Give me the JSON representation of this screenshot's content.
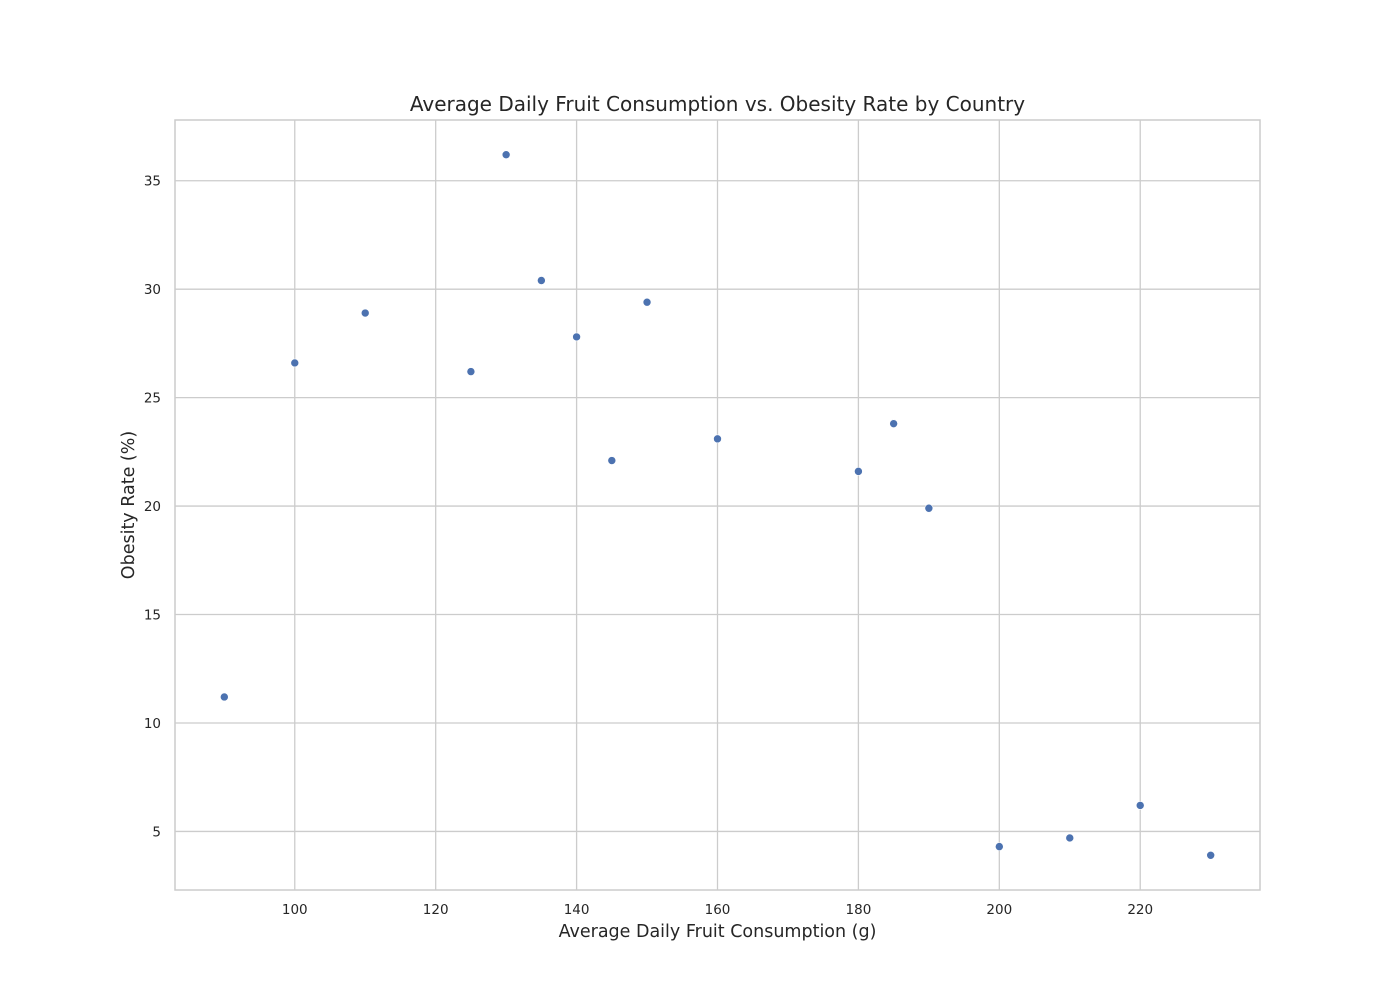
{
  "chart_data": {
    "type": "scatter",
    "title": "Average Daily Fruit Consumption vs. Obesity Rate by Country",
    "xlabel": "Average Daily Fruit Consumption (g)",
    "ylabel": "Obesity Rate (%)",
    "xlim": [
      83,
      237
    ],
    "ylim": [
      2.3,
      37.8
    ],
    "xticks": [
      100,
      120,
      140,
      160,
      180,
      200,
      220
    ],
    "yticks": [
      5,
      10,
      15,
      20,
      25,
      30,
      35
    ],
    "grid": true,
    "point_color": "#4c72b0",
    "grid_color": "#cccccc",
    "points": [
      {
        "x": 90,
        "y": 11.2
      },
      {
        "x": 100,
        "y": 26.6
      },
      {
        "x": 110,
        "y": 28.9
      },
      {
        "x": 125,
        "y": 26.2
      },
      {
        "x": 130,
        "y": 36.2
      },
      {
        "x": 135,
        "y": 30.4
      },
      {
        "x": 140,
        "y": 27.8
      },
      {
        "x": 145,
        "y": 22.1
      },
      {
        "x": 150,
        "y": 29.4
      },
      {
        "x": 160,
        "y": 23.1
      },
      {
        "x": 180,
        "y": 21.6
      },
      {
        "x": 185,
        "y": 23.8
      },
      {
        "x": 190,
        "y": 19.9
      },
      {
        "x": 200,
        "y": 4.3
      },
      {
        "x": 210,
        "y": 4.7
      },
      {
        "x": 220,
        "y": 6.2
      },
      {
        "x": 230,
        "y": 3.9
      }
    ]
  }
}
